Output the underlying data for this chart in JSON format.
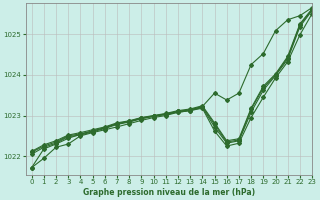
{
  "title": "Graphe pression niveau de la mer (hPa)",
  "bg_color": "#cceee8",
  "grid_color": "#bbbbbb",
  "line_color": "#2d6b2d",
  "xlim": [
    -0.5,
    23
  ],
  "ylim": [
    1021.55,
    1025.75
  ],
  "yticks": [
    1022,
    1023,
    1024,
    1025
  ],
  "xticks": [
    0,
    1,
    2,
    3,
    4,
    5,
    6,
    7,
    8,
    9,
    10,
    11,
    12,
    13,
    14,
    15,
    16,
    17,
    18,
    19,
    20,
    21,
    22,
    23
  ],
  "series": [
    [
      1021.72,
      1021.95,
      1022.22,
      1022.3,
      1022.5,
      1022.58,
      1022.65,
      1022.72,
      1022.8,
      1022.88,
      1022.95,
      1023.0,
      1023.08,
      1023.12,
      1023.18,
      1022.62,
      1022.25,
      1022.32,
      1022.95,
      1023.45,
      1023.92,
      1024.32,
      1024.98,
      1025.5
    ],
    [
      1022.05,
      1022.22,
      1022.32,
      1022.48,
      1022.52,
      1022.6,
      1022.68,
      1022.78,
      1022.84,
      1022.92,
      1022.98,
      1023.03,
      1023.08,
      1023.12,
      1023.2,
      1022.72,
      1022.32,
      1022.38,
      1023.08,
      1023.62,
      1023.98,
      1024.38,
      1025.18,
      1025.58
    ],
    [
      1022.1,
      1022.25,
      1022.35,
      1022.5,
      1022.55,
      1022.62,
      1022.7,
      1022.8,
      1022.85,
      1022.93,
      1022.98,
      1023.03,
      1023.1,
      1023.14,
      1023.22,
      1022.78,
      1022.35,
      1022.4,
      1023.15,
      1023.68,
      1024.0,
      1024.42,
      1025.22,
      1025.6
    ],
    [
      1022.12,
      1022.28,
      1022.38,
      1022.52,
      1022.58,
      1022.65,
      1022.72,
      1022.82,
      1022.87,
      1022.95,
      1023.0,
      1023.05,
      1023.12,
      1023.16,
      1023.24,
      1022.82,
      1022.38,
      1022.43,
      1023.18,
      1023.72,
      1024.02,
      1024.45,
      1025.25,
      1025.62
    ],
    [
      1021.72,
      1022.18,
      1022.3,
      1022.44,
      1022.54,
      1022.62,
      1022.7,
      1022.8,
      1022.86,
      1022.94,
      1022.99,
      1023.04,
      1023.1,
      1023.14,
      1023.22,
      1023.55,
      1023.38,
      1023.55,
      1024.25,
      1024.52,
      1025.08,
      1025.35,
      1025.45,
      1025.65
    ]
  ]
}
